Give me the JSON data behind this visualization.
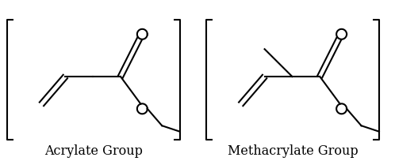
{
  "background_color": "#ffffff",
  "line_color": "#000000",
  "label1": "Acrylate Group",
  "label2": "Methacrylate Group",
  "label_fontsize": 11.5,
  "lw": 1.5,
  "circle_r": 0.13
}
